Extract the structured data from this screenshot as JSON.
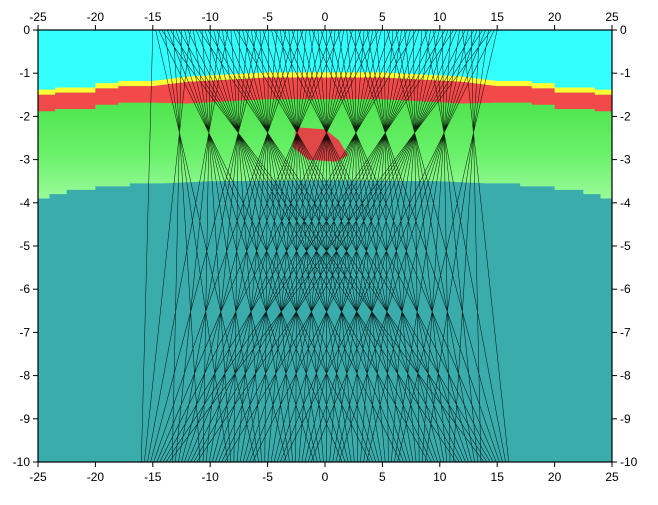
{
  "chart_data": {
    "type": "heatmap",
    "title": "",
    "xlabel": "",
    "ylabel": "",
    "xlim": [
      -25,
      25
    ],
    "ylim": [
      -10,
      0
    ],
    "x_ticks": [
      "-25",
      "-20",
      "-15",
      "-10",
      "-5",
      "0",
      "5",
      "10",
      "15",
      "20",
      "25"
    ],
    "y_ticks": [
      "0",
      "-1",
      "-2",
      "-3",
      "-4",
      "-5",
      "-6",
      "-7",
      "-8",
      "-9",
      "-10"
    ],
    "grid": false,
    "colors": {
      "top_layer": "#33ffff",
      "yellow_band": "#ffff33",
      "red_band": "#f24a4a",
      "green_layer": "#55ee55",
      "light_green": "#88f888",
      "deep_layer": "#3aacac",
      "anomaly": "#e04848",
      "ray_color": "#000000"
    },
    "layers": [
      {
        "name": "layer-1",
        "depth_range": [
          0,
          -1.5
        ],
        "color": "#33ffff"
      },
      {
        "name": "layer-2",
        "depth_range": [
          -1.2,
          -1.9
        ],
        "color": "#f24a4a"
      },
      {
        "name": "layer-3",
        "depth_range": [
          -1.9,
          -3.7
        ],
        "color": "#55ee55"
      },
      {
        "name": "layer-4",
        "depth_range": [
          -3.7,
          -10
        ],
        "color": "#3aacac"
      }
    ],
    "anomaly": {
      "x_range": [
        -3,
        2
      ],
      "depth_range": [
        -2.3,
        -3.0
      ]
    },
    "ray_fan": {
      "top_x_range": [
        -15,
        15
      ],
      "bottom_x_range": [
        -16,
        16
      ],
      "count": 120
    }
  }
}
